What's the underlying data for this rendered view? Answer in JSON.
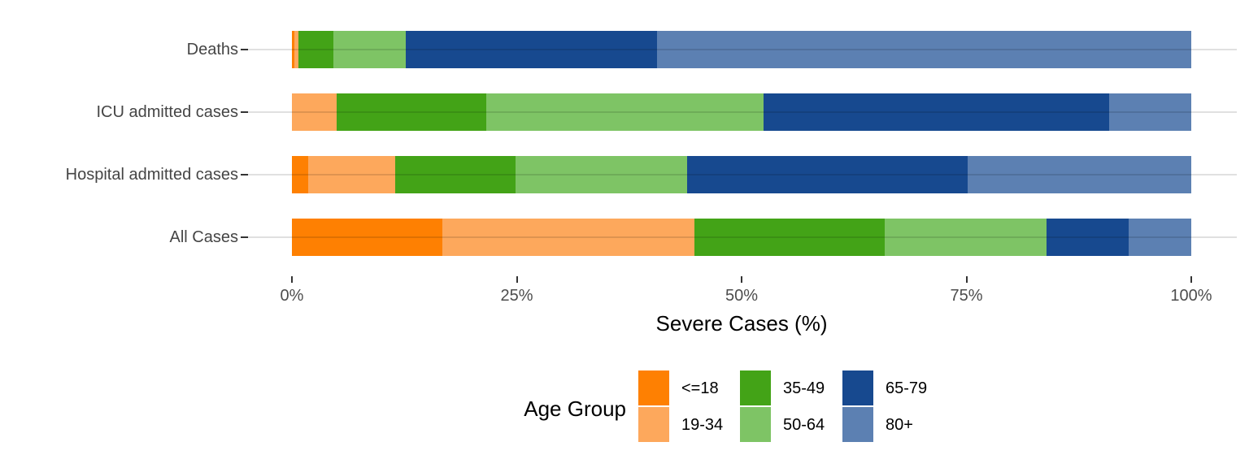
{
  "chart_data": {
    "type": "bar",
    "orientation": "horizontal",
    "stacked": true,
    "unit": "percent",
    "title": "",
    "xlabel": "Severe Cases (%)",
    "ylabel": "",
    "xlim": [
      0,
      100
    ],
    "x_ticks": [
      "0%",
      "25%",
      "50%",
      "75%",
      "100%"
    ],
    "x_tick_values": [
      0,
      25,
      50,
      75,
      100
    ],
    "grid": "horizontal-major-only",
    "legend_title": "Age Group",
    "legend_position": "bottom-center",
    "categories": [
      "Deaths",
      "ICU admitted cases",
      "Hospital admitted cases",
      "All Cases"
    ],
    "series": [
      {
        "name": "<=18",
        "color": "#FE8002",
        "values": [
          0.3,
          0.0,
          1.8,
          16.7
        ]
      },
      {
        "name": "19-34",
        "color": "#FDA85C",
        "values": [
          0.4,
          5.0,
          9.7,
          28.1
        ]
      },
      {
        "name": "35-49",
        "color": "#43A317",
        "values": [
          3.9,
          16.6,
          13.4,
          21.1
        ]
      },
      {
        "name": "50-64",
        "color": "#7EC465",
        "values": [
          8.1,
          30.8,
          19.0,
          18.0
        ]
      },
      {
        "name": "65-79",
        "color": "#17498F",
        "values": [
          27.9,
          38.5,
          31.2,
          9.1
        ]
      },
      {
        "name": "80+",
        "color": "#5C80B2",
        "values": [
          59.4,
          9.1,
          24.9,
          7.0
        ]
      }
    ]
  }
}
